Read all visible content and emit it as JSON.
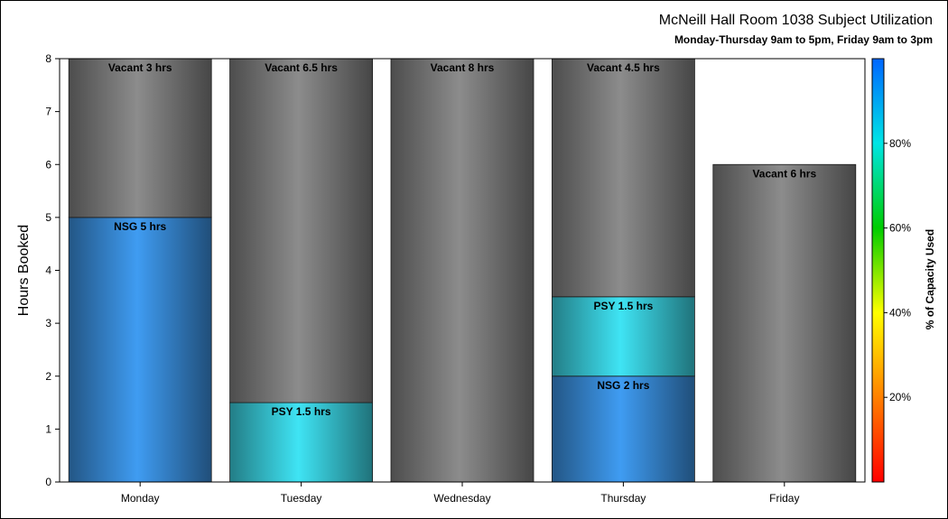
{
  "chart_data": {
    "type": "bar",
    "stacked": true,
    "title": "McNeill Hall Room 1038 Subject Utilization",
    "subtitle": "Monday-Thursday 9am to 5pm, Friday 9am to 3pm",
    "ylabel": "Hours Booked",
    "xlabel": "",
    "ylim": [
      0,
      8
    ],
    "yticks": [
      0,
      1,
      2,
      3,
      4,
      5,
      6,
      7,
      8
    ],
    "grid": false,
    "categories": [
      "Monday",
      "Tuesday",
      "Wednesday",
      "Thursday",
      "Friday"
    ],
    "bars": [
      {
        "category": "Monday",
        "segments": [
          {
            "subject": "NSG",
            "hours": 5,
            "label": "NSG 5 hrs",
            "color": "#3f9cf2"
          },
          {
            "subject": "Vacant",
            "hours": 3,
            "label": "Vacant 3 hrs",
            "color": "#8c8c8c"
          }
        ]
      },
      {
        "category": "Tuesday",
        "segments": [
          {
            "subject": "PSY",
            "hours": 1.5,
            "label": "PSY 1.5 hrs",
            "color": "#3fe4f4"
          },
          {
            "subject": "Vacant",
            "hours": 6.5,
            "label": "Vacant 6.5 hrs",
            "color": "#8c8c8c"
          }
        ]
      },
      {
        "category": "Wednesday",
        "segments": [
          {
            "subject": "Vacant",
            "hours": 8,
            "label": "Vacant 8 hrs",
            "color": "#8c8c8c"
          }
        ]
      },
      {
        "category": "Thursday",
        "segments": [
          {
            "subject": "NSG",
            "hours": 2,
            "label": "NSG 2 hrs",
            "color": "#3f9cf2"
          },
          {
            "subject": "PSY",
            "hours": 1.5,
            "label": "PSY 1.5 hrs",
            "color": "#3fe4f4"
          },
          {
            "subject": "Vacant",
            "hours": 4.5,
            "label": "Vacant 4.5 hrs",
            "color": "#8c8c8c"
          }
        ]
      },
      {
        "category": "Friday",
        "segments": [
          {
            "subject": "Vacant",
            "hours": 6,
            "label": "Vacant 6 hrs",
            "color": "#8c8c8c"
          }
        ]
      }
    ],
    "colorbar": {
      "label": "% of Capacity Used",
      "ticks": [
        20,
        40,
        60,
        80
      ],
      "tick_labels": [
        "20%",
        "40%",
        "60%",
        "80%"
      ],
      "range": [
        0,
        100
      ],
      "colors": [
        "#ff0000",
        "#ff8000",
        "#ffff00",
        "#00cc00",
        "#00e5e5",
        "#0066ff"
      ]
    }
  }
}
